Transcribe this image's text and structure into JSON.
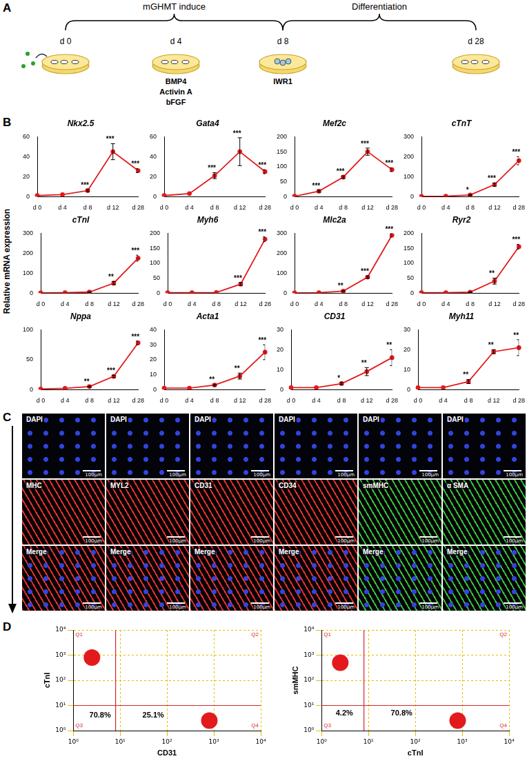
{
  "panel_labels": [
    "A",
    "B",
    "C",
    "D"
  ],
  "panel_a": {
    "phases": [
      {
        "label": "mGHMT induce",
        "from": "d 0",
        "to": "d 8"
      },
      {
        "label": "Differentiation",
        "from": "d 8",
        "to": "d 28"
      }
    ],
    "days": [
      {
        "label": "d 0",
        "treatments": []
      },
      {
        "label": "d 4",
        "treatments": [
          "BMP4",
          "Activin A",
          "bFGF"
        ]
      },
      {
        "label": "d 8",
        "treatments": [
          "IWR1"
        ]
      },
      {
        "label": "d 28",
        "treatments": []
      }
    ]
  },
  "y_axis_label": "Relative mRNA expression",
  "chart_data": [
    {
      "type": "line",
      "title": "Nkx2.5",
      "categories": [
        "d 0",
        "d 4",
        "d 8",
        "d 12",
        "d 28"
      ],
      "values": [
        1,
        2,
        6,
        45,
        26
      ],
      "errors": [
        0,
        0,
        1,
        8,
        2
      ],
      "significance": [
        null,
        null,
        "***",
        "***",
        "***"
      ],
      "color": "#e31a1c",
      "marker": "circle",
      "ylim": [
        0,
        60
      ],
      "yticks": [
        0,
        20,
        40,
        60
      ]
    },
    {
      "type": "line",
      "title": "Gata4",
      "categories": [
        "d 0",
        "d 4",
        "d 8",
        "d 12",
        "d 28"
      ],
      "values": [
        1,
        3,
        21,
        45,
        25
      ],
      "errors": [
        0,
        0,
        3,
        14,
        2
      ],
      "significance": [
        null,
        null,
        "***",
        "***",
        "***"
      ],
      "color": "#e31a1c",
      "marker": "circle",
      "ylim": [
        0,
        60
      ],
      "yticks": [
        0,
        20,
        40,
        60
      ]
    },
    {
      "type": "line",
      "title": "Mef2c",
      "categories": [
        "d 0",
        "d 4",
        "d 8",
        "d 12",
        "d 28"
      ],
      "values": [
        1,
        18,
        65,
        150,
        90
      ],
      "errors": [
        0,
        3,
        4,
        12,
        6
      ],
      "significance": [
        null,
        "***",
        "***",
        "***",
        "***"
      ],
      "color": "#e31a1c",
      "marker": "circle",
      "ylim": [
        0,
        200
      ],
      "yticks": [
        0,
        50,
        100,
        150,
        200
      ]
    },
    {
      "type": "line",
      "title": "cTnT",
      "categories": [
        "d 0",
        "d 4",
        "d 8",
        "d 12",
        "d 28"
      ],
      "values": [
        1,
        2,
        8,
        60,
        180
      ],
      "errors": [
        0,
        0,
        2,
        8,
        20
      ],
      "significance": [
        null,
        null,
        "*",
        "***",
        "***"
      ],
      "color": "#e31a1c",
      "marker": "circle",
      "ylim": [
        0,
        300
      ],
      "yticks": [
        0,
        100,
        200,
        300
      ]
    },
    {
      "type": "line",
      "title": "cTnI",
      "categories": [
        "d 0",
        "d 4",
        "d 8",
        "d 12",
        "d 28"
      ],
      "values": [
        1,
        2,
        5,
        50,
        175
      ],
      "errors": [
        0,
        0,
        1,
        8,
        15
      ],
      "significance": [
        null,
        null,
        null,
        "**",
        "***"
      ],
      "color": "#e31a1c",
      "marker": "circle",
      "ylim": [
        0,
        300
      ],
      "yticks": [
        0,
        100,
        200,
        300
      ]
    },
    {
      "type": "line",
      "title": "Myh6",
      "categories": [
        "d 0",
        "d 4",
        "d 8",
        "d 12",
        "d 28"
      ],
      "values": [
        1,
        1,
        2,
        30,
        180
      ],
      "errors": [
        0,
        0,
        0,
        5,
        8
      ],
      "significance": [
        null,
        null,
        null,
        "***",
        "***"
      ],
      "color": "#e31a1c",
      "marker": "circle",
      "ylim": [
        0,
        200
      ],
      "yticks": [
        0,
        50,
        100,
        150,
        200
      ]
    },
    {
      "type": "line",
      "title": "Mlc2a",
      "categories": [
        "d 0",
        "d 4",
        "d 8",
        "d 12",
        "d 28"
      ],
      "values": [
        1,
        2,
        10,
        80,
        290
      ],
      "errors": [
        0,
        0,
        2,
        5,
        8
      ],
      "significance": [
        null,
        null,
        "**",
        "***",
        "***"
      ],
      "color": "#e31a1c",
      "marker": "circle",
      "ylim": [
        0,
        300
      ],
      "yticks": [
        0,
        100,
        200,
        300
      ]
    },
    {
      "type": "line",
      "title": "Ryr2",
      "categories": [
        "d 0",
        "d 4",
        "d 8",
        "d 12",
        "d 28"
      ],
      "values": [
        1,
        1,
        3,
        40,
        155
      ],
      "errors": [
        0,
        0,
        1,
        10,
        8
      ],
      "significance": [
        null,
        null,
        null,
        "**",
        "***"
      ],
      "color": "#e31a1c",
      "marker": "circle",
      "ylim": [
        0,
        200
      ],
      "yticks": [
        0,
        50,
        100,
        150,
        200
      ]
    },
    {
      "type": "line",
      "title": "Nppa",
      "categories": [
        "d 0",
        "d 4",
        "d 8",
        "d 12",
        "d 28"
      ],
      "values": [
        1,
        2,
        5,
        22,
        78
      ],
      "errors": [
        0,
        0,
        1,
        2,
        3
      ],
      "significance": [
        null,
        null,
        "**",
        "***",
        "***"
      ],
      "color": "#e31a1c",
      "marker": "circle",
      "ylim": [
        0,
        100
      ],
      "yticks": [
        0,
        50,
        100
      ]
    },
    {
      "type": "line",
      "title": "Acta1",
      "categories": [
        "d 0",
        "d 4",
        "d 8",
        "d 12",
        "d 28"
      ],
      "values": [
        1,
        1,
        3,
        9,
        25
      ],
      "errors": [
        0,
        0,
        0.5,
        2,
        5
      ],
      "significance": [
        null,
        null,
        "**",
        "**",
        "***"
      ],
      "color": "#e31a1c",
      "marker": "circle",
      "ylim": [
        0,
        40
      ],
      "yticks": [
        0,
        10,
        20,
        30,
        40
      ]
    },
    {
      "type": "line",
      "title": "CD31",
      "categories": [
        "d 0",
        "d 4",
        "d 8",
        "d 12",
        "d 28"
      ],
      "values": [
        1,
        1,
        3,
        9,
        16
      ],
      "errors": [
        0,
        0,
        0.5,
        2,
        4
      ],
      "significance": [
        null,
        null,
        "*",
        "**",
        "**"
      ],
      "color": "#e31a1c",
      "marker": "circle",
      "ylim": [
        0,
        30
      ],
      "yticks": [
        0,
        10,
        20,
        30
      ]
    },
    {
      "type": "line",
      "title": "Myh11",
      "categories": [
        "d 0",
        "d 4",
        "d 8",
        "d 12",
        "d 28"
      ],
      "values": [
        1,
        1,
        4,
        19,
        21
      ],
      "errors": [
        0,
        0,
        1,
        1,
        4
      ],
      "significance": [
        null,
        null,
        "**",
        "**",
        "**"
      ],
      "color": "#e31a1c",
      "marker": "circle",
      "ylim": [
        0,
        30
      ],
      "yticks": [
        0,
        10,
        20,
        30
      ]
    },
    {
      "type": "scatter",
      "log": true,
      "grid": true,
      "color": "#e31a1c",
      "marker": "circle",
      "x_label": "CD31",
      "y_label": "cTnI",
      "xlim": [
        1,
        10000
      ],
      "ylim": [
        1,
        10000
      ],
      "xticks": [
        {
          "value": 1,
          "label": "10⁰"
        },
        {
          "value": 10,
          "label": "10¹"
        },
        {
          "value": 100,
          "label": "10²"
        },
        {
          "value": 1000,
          "label": "10³"
        },
        {
          "value": 10000,
          "label": "10⁴"
        }
      ],
      "yticks": [
        {
          "value": 1,
          "label": "10⁰"
        },
        {
          "value": 10,
          "label": "10¹"
        },
        {
          "value": 100,
          "label": "10²"
        },
        {
          "value": 1000,
          "label": "10³"
        },
        {
          "value": 10000,
          "label": "10⁴"
        }
      ],
      "gates": {
        "x": 8,
        "y": 10
      },
      "quadrants": [
        "Q1",
        "Q2",
        "Q3",
        "Q4"
      ],
      "populations": [
        {
          "x": 2.5,
          "y": 800
        },
        {
          "x": 800,
          "y": 2.5
        }
      ],
      "annotations": [
        {
          "text": "70.8%",
          "x": 2.2,
          "y": 4
        },
        {
          "text": "25.1%",
          "x": 30,
          "y": 4
        }
      ]
    },
    {
      "type": "scatter",
      "log": true,
      "grid": true,
      "color": "#e31a1c",
      "marker": "circle",
      "x_label": "cTnI",
      "y_label": "smMHC",
      "xlim": [
        1,
        10000
      ],
      "ylim": [
        1,
        10000
      ],
      "xticks": [
        {
          "value": 1,
          "label": "10⁰"
        },
        {
          "value": 10,
          "label": "10¹"
        },
        {
          "value": 100,
          "label": "10²"
        },
        {
          "value": 1000,
          "label": "10³"
        },
        {
          "value": 10000,
          "label": "10⁴"
        }
      ],
      "yticks": [
        {
          "value": 1,
          "label": "10⁰"
        },
        {
          "value": 10,
          "label": "10¹"
        },
        {
          "value": 100,
          "label": "10²"
        },
        {
          "value": 1000,
          "label": "10³"
        },
        {
          "value": 10000,
          "label": "10⁴"
        }
      ],
      "gates": {
        "x": 8,
        "y": 10
      },
      "quadrants": [
        "Q1",
        "Q2",
        "Q3",
        "Q4"
      ],
      "populations": [
        {
          "x": 2.5,
          "y": 500
        },
        {
          "x": 800,
          "y": 2.5
        }
      ],
      "annotations": [
        {
          "text": "4.2%",
          "x": 2,
          "y": 5
        },
        {
          "text": "70.8%",
          "x": 30,
          "y": 5
        }
      ]
    }
  ],
  "panel_c": {
    "scale_bar": "100μm",
    "columns": [
      {
        "labels": [
          "DAPI",
          "MHC",
          "Merge"
        ],
        "color": "#e03030"
      },
      {
        "labels": [
          "DAPI",
          "MYL2",
          "Merge"
        ],
        "color": "#e03030"
      },
      {
        "labels": [
          "DAPI",
          "CD31",
          "Merge"
        ],
        "color": "#e03030"
      },
      {
        "labels": [
          "DAPI",
          "CD34",
          "Merge"
        ],
        "color": "#e03030"
      },
      {
        "labels": [
          "DAPI",
          "smMHC",
          "Merge"
        ],
        "color": "#30c040"
      },
      {
        "labels": [
          "DAPI",
          "α SMA",
          "Merge"
        ],
        "color": "#30c040"
      }
    ]
  }
}
